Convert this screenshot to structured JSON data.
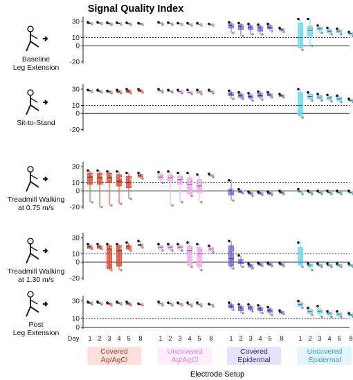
{
  "chart_data": {
    "type": "box",
    "title": "Signal Quality Index",
    "xlabel": "Electrode Setup",
    "day_axis_label": "Day",
    "days": [
      "1",
      "2",
      "3",
      "4",
      "5",
      "8"
    ],
    "yticks": [
      -20,
      0,
      10,
      30
    ],
    "reference_line_y": 10,
    "zero_line_y": 0,
    "groups": [
      {
        "name_line1": "Covered",
        "name_line2": "Ag/AgCl",
        "color": "#d9452a",
        "label_color": "#c0392b",
        "label_bg": "#fde0dc"
      },
      {
        "name_line1": "Uncovered",
        "name_line2": "Ag/AgCl",
        "color": "#f0a8ec",
        "label_color": "#e37ddf",
        "label_bg": "#fdeefc"
      },
      {
        "name_line1": "Covered",
        "name_line2": "Epidermal",
        "color": "#6b63e0",
        "label_color": "#2d22b8",
        "label_bg": "#e4e3fb"
      },
      {
        "name_line1": "Uncovered",
        "name_line2": "Epidermal",
        "color": "#68d4f2",
        "label_color": "#27a9d8",
        "label_bg": "#e0f5fc"
      }
    ],
    "panels": [
      {
        "label_line1": "Baseline",
        "label_line2": "Leg Extension",
        "ylim": [
          -22,
          36
        ],
        "groups": [
          [
            [
              27,
              28,
              28,
              28,
              29
            ],
            [
              27,
              27.5,
              28,
              28.5,
              29
            ],
            [
              26,
              27,
              27.5,
              28,
              28.5
            ],
            [
              26.5,
              27,
              27.5,
              28,
              28.5
            ],
            [
              26,
              27,
              27.5,
              28,
              28.5
            ],
            [
              26,
              26.5,
              27,
              27.5,
              28
            ]
          ],
          [
            [
              26,
              27,
              28,
              28.5,
              29
            ],
            [
              26,
              27,
              27.5,
              28,
              28.5
            ],
            [
              26,
              26.5,
              27,
              27.5,
              28
            ],
            [
              25,
              26,
              26.5,
              27,
              28
            ],
            [
              25,
              26,
              26.5,
              27,
              28
            ],
            [
              25,
              26,
              26,
              26.5,
              27
            ]
          ],
          [
            [
              16,
              22,
              25,
              27,
              29
            ],
            [
              12,
              20,
              24,
              26,
              28
            ],
            [
              14,
              20,
              23,
              25,
              27
            ],
            [
              14,
              18,
              22,
              24,
              26
            ],
            [
              18,
              21,
              23,
              25,
              27
            ],
            [
              17,
              19,
              20,
              21,
              22
            ]
          ],
          [
            [
              -5,
              -2,
              10,
              28,
              33
            ],
            [
              0,
              12,
              19,
              24,
              33
            ],
            [
              16,
              19,
              21,
              23,
              25
            ],
            [
              14,
              16,
              18,
              20,
              22
            ],
            [
              14,
              16,
              18,
              19,
              21
            ],
            [
              12,
              14,
              15,
              16,
              17
            ]
          ]
        ]
      },
      {
        "label_line1": "Sit-to-Stand",
        "label_line2": "",
        "ylim": [
          -22,
          36
        ],
        "groups": [
          [
            [
              27,
              27.5,
              28,
              28.5,
              29
            ],
            [
              26,
              27,
              27.5,
              28,
              29
            ],
            [
              25,
              26,
              27,
              27.5,
              28
            ],
            [
              25,
              26,
              27,
              28,
              29
            ],
            [
              25,
              26,
              27.5,
              29,
              30
            ],
            [
              26,
              27,
              28,
              29,
              30
            ]
          ],
          [
            [
              26,
              27,
              28,
              29,
              30
            ],
            [
              26,
              27,
              27.5,
              28,
              29
            ],
            [
              25,
              26,
              27,
              28,
              29
            ],
            [
              24,
              25,
              26,
              27,
              29
            ],
            [
              24,
              25,
              26.5,
              28,
              29
            ],
            [
              25,
              26,
              27,
              28,
              29
            ]
          ],
          [
            [
              18,
              22,
              24,
              26,
              28
            ],
            [
              18,
              20,
              22,
              24,
              26
            ],
            [
              16,
              19,
              21,
              23,
              25
            ],
            [
              17,
              20,
              22,
              25,
              27
            ],
            [
              20,
              22,
              23,
              24,
              26
            ],
            [
              20,
              21,
              22,
              23,
              24
            ]
          ],
          [
            [
              -5,
              -3,
              10,
              26,
              30
            ],
            [
              16,
              18,
              21,
              24,
              26
            ],
            [
              16,
              18,
              20,
              22,
              24
            ],
            [
              15,
              17,
              19,
              21,
              23
            ],
            [
              14,
              16,
              18,
              20,
              22
            ],
            [
              14,
              15,
              16,
              17,
              18
            ]
          ]
        ]
      },
      {
        "label_line1": "Treadmill Walking",
        "label_line2": "at 0.75 m/s",
        "ylim": [
          -22,
          36
        ],
        "groups": [
          [
            [
              -14,
              8,
              17,
              22,
              25
            ],
            [
              -20,
              8,
              16,
              22,
              25
            ],
            [
              -18,
              10,
              16,
              22,
              24
            ],
            [
              -16,
              6,
              12,
              20,
              24
            ],
            [
              -10,
              4,
              10,
              18,
              22
            ],
            [
              15,
              17,
              19,
              20,
              22
            ]
          ],
          [
            [
              10,
              14,
              17,
              20,
              23
            ],
            [
              -18,
              12,
              16,
              20,
              24
            ],
            [
              -14,
              8,
              14,
              18,
              22
            ],
            [
              -6,
              -4,
              8,
              16,
              22
            ],
            [
              -14,
              -2,
              6,
              14,
              20
            ],
            [
              17,
              18,
              19,
              20,
              21
            ]
          ],
          [
            [
              -12,
              -5,
              0,
              2,
              13
            ],
            [
              -3,
              -2,
              -1,
              0,
              2
            ],
            [
              -6,
              -4,
              -3,
              -2,
              -1
            ],
            [
              -5,
              -4,
              -3,
              -2,
              -1
            ],
            [
              -5,
              -4,
              -3,
              -2,
              -1
            ],
            [
              -4,
              -3,
              -2,
              -1,
              0
            ]
          ],
          [
            [
              -4,
              -2,
              -1,
              0,
              2
            ],
            [
              -4,
              -3,
              -2,
              -1,
              0
            ],
            [
              -4,
              -3,
              -2,
              -1,
              0
            ],
            [
              -4,
              -3,
              -2,
              -1,
              0
            ],
            [
              -4,
              -3,
              -2,
              -1,
              0
            ],
            [
              -4,
              -3,
              -2,
              -1,
              0
            ]
          ]
        ]
      },
      {
        "label_line1": "Treadmill Walking",
        "label_line2": "at 1.30 m/s",
        "ylim": [
          -22,
          36
        ],
        "groups": [
          [
            [
              16,
              17,
              19,
              20,
              22
            ],
            [
              16,
              17,
              19,
              20,
              22
            ],
            [
              -10,
              -8,
              16,
              20,
              22
            ],
            [
              -10,
              -5,
              14,
              20,
              22
            ],
            [
              14,
              16,
              19,
              21,
              24
            ],
            [
              18,
              20,
              21,
              22,
              26
            ]
          ],
          [
            [
              14,
              16,
              18,
              20,
              22
            ],
            [
              14,
              16,
              18,
              20,
              22
            ],
            [
              14,
              16,
              18,
              20,
              22
            ],
            [
              -6,
              -4,
              14,
              20,
              24
            ],
            [
              -10,
              -6,
              10,
              18,
              22
            ],
            [
              12,
              14,
              16,
              18,
              20
            ]
          ],
          [
            [
              -8,
              -5,
              4,
              20,
              26
            ],
            [
              -6,
              -2,
              0,
              3,
              8
            ],
            [
              -8,
              -6,
              -4,
              -3,
              -2
            ],
            [
              -5,
              -4,
              -3,
              -2,
              -1
            ],
            [
              -5,
              -4,
              -3,
              -2,
              -1
            ],
            [
              -5,
              -4,
              -3,
              -2,
              -1
            ]
          ],
          [
            [
              -6,
              -4,
              0,
              18,
              24
            ],
            [
              -10,
              -6,
              -4,
              -3,
              -2
            ],
            [
              -6,
              -5,
              -4,
              -3,
              -2
            ],
            [
              -6,
              -5,
              -4,
              -3,
              -2
            ],
            [
              -6,
              -5,
              -4,
              -3,
              -2
            ],
            [
              -6,
              -5,
              -4,
              -3,
              -2
            ]
          ]
        ]
      },
      {
        "label_line1": "Post",
        "label_line2": "Leg Extension",
        "ylim": [
          -2,
          36
        ],
        "groups": [
          [
            [
              26,
              27,
              28,
              28.5,
              29
            ],
            [
              26,
              27,
              27.5,
              28,
              29
            ],
            [
              25,
              26,
              27,
              27.5,
              28
            ],
            [
              26,
              27,
              27.5,
              28,
              29
            ],
            [
              25,
              26,
              27,
              28,
              29
            ],
            [
              25,
              25.5,
              26,
              26.5,
              27
            ]
          ],
          [
            [
              25,
              26,
              27,
              28,
              29
            ],
            [
              25,
              26,
              27,
              27.5,
              28
            ],
            [
              25,
              26,
              26.5,
              27,
              28
            ],
            [
              24,
              25,
              26,
              27,
              28
            ],
            [
              24,
              25,
              26,
              27,
              28
            ],
            [
              24,
              25,
              25.5,
              26,
              26.5
            ]
          ],
          [
            [
              20,
              22,
              24,
              26,
              28
            ],
            [
              16,
              19,
              22,
              24,
              26
            ],
            [
              18,
              20,
              22,
              24,
              26
            ],
            [
              16,
              19,
              21,
              23,
              25
            ],
            [
              14,
              17,
              19,
              21,
              23
            ],
            [
              15,
              16,
              17,
              18,
              19
            ]
          ],
          [
            [
              22,
              24,
              26,
              28,
              30
            ],
            [
              14,
              16,
              18,
              20,
              22
            ],
            [
              12,
              16,
              18,
              20,
              24
            ],
            [
              12,
              14,
              16,
              17,
              18
            ],
            [
              12,
              13,
              15,
              16,
              18
            ],
            [
              12,
              13,
              14,
              15,
              16
            ]
          ]
        ]
      }
    ]
  }
}
